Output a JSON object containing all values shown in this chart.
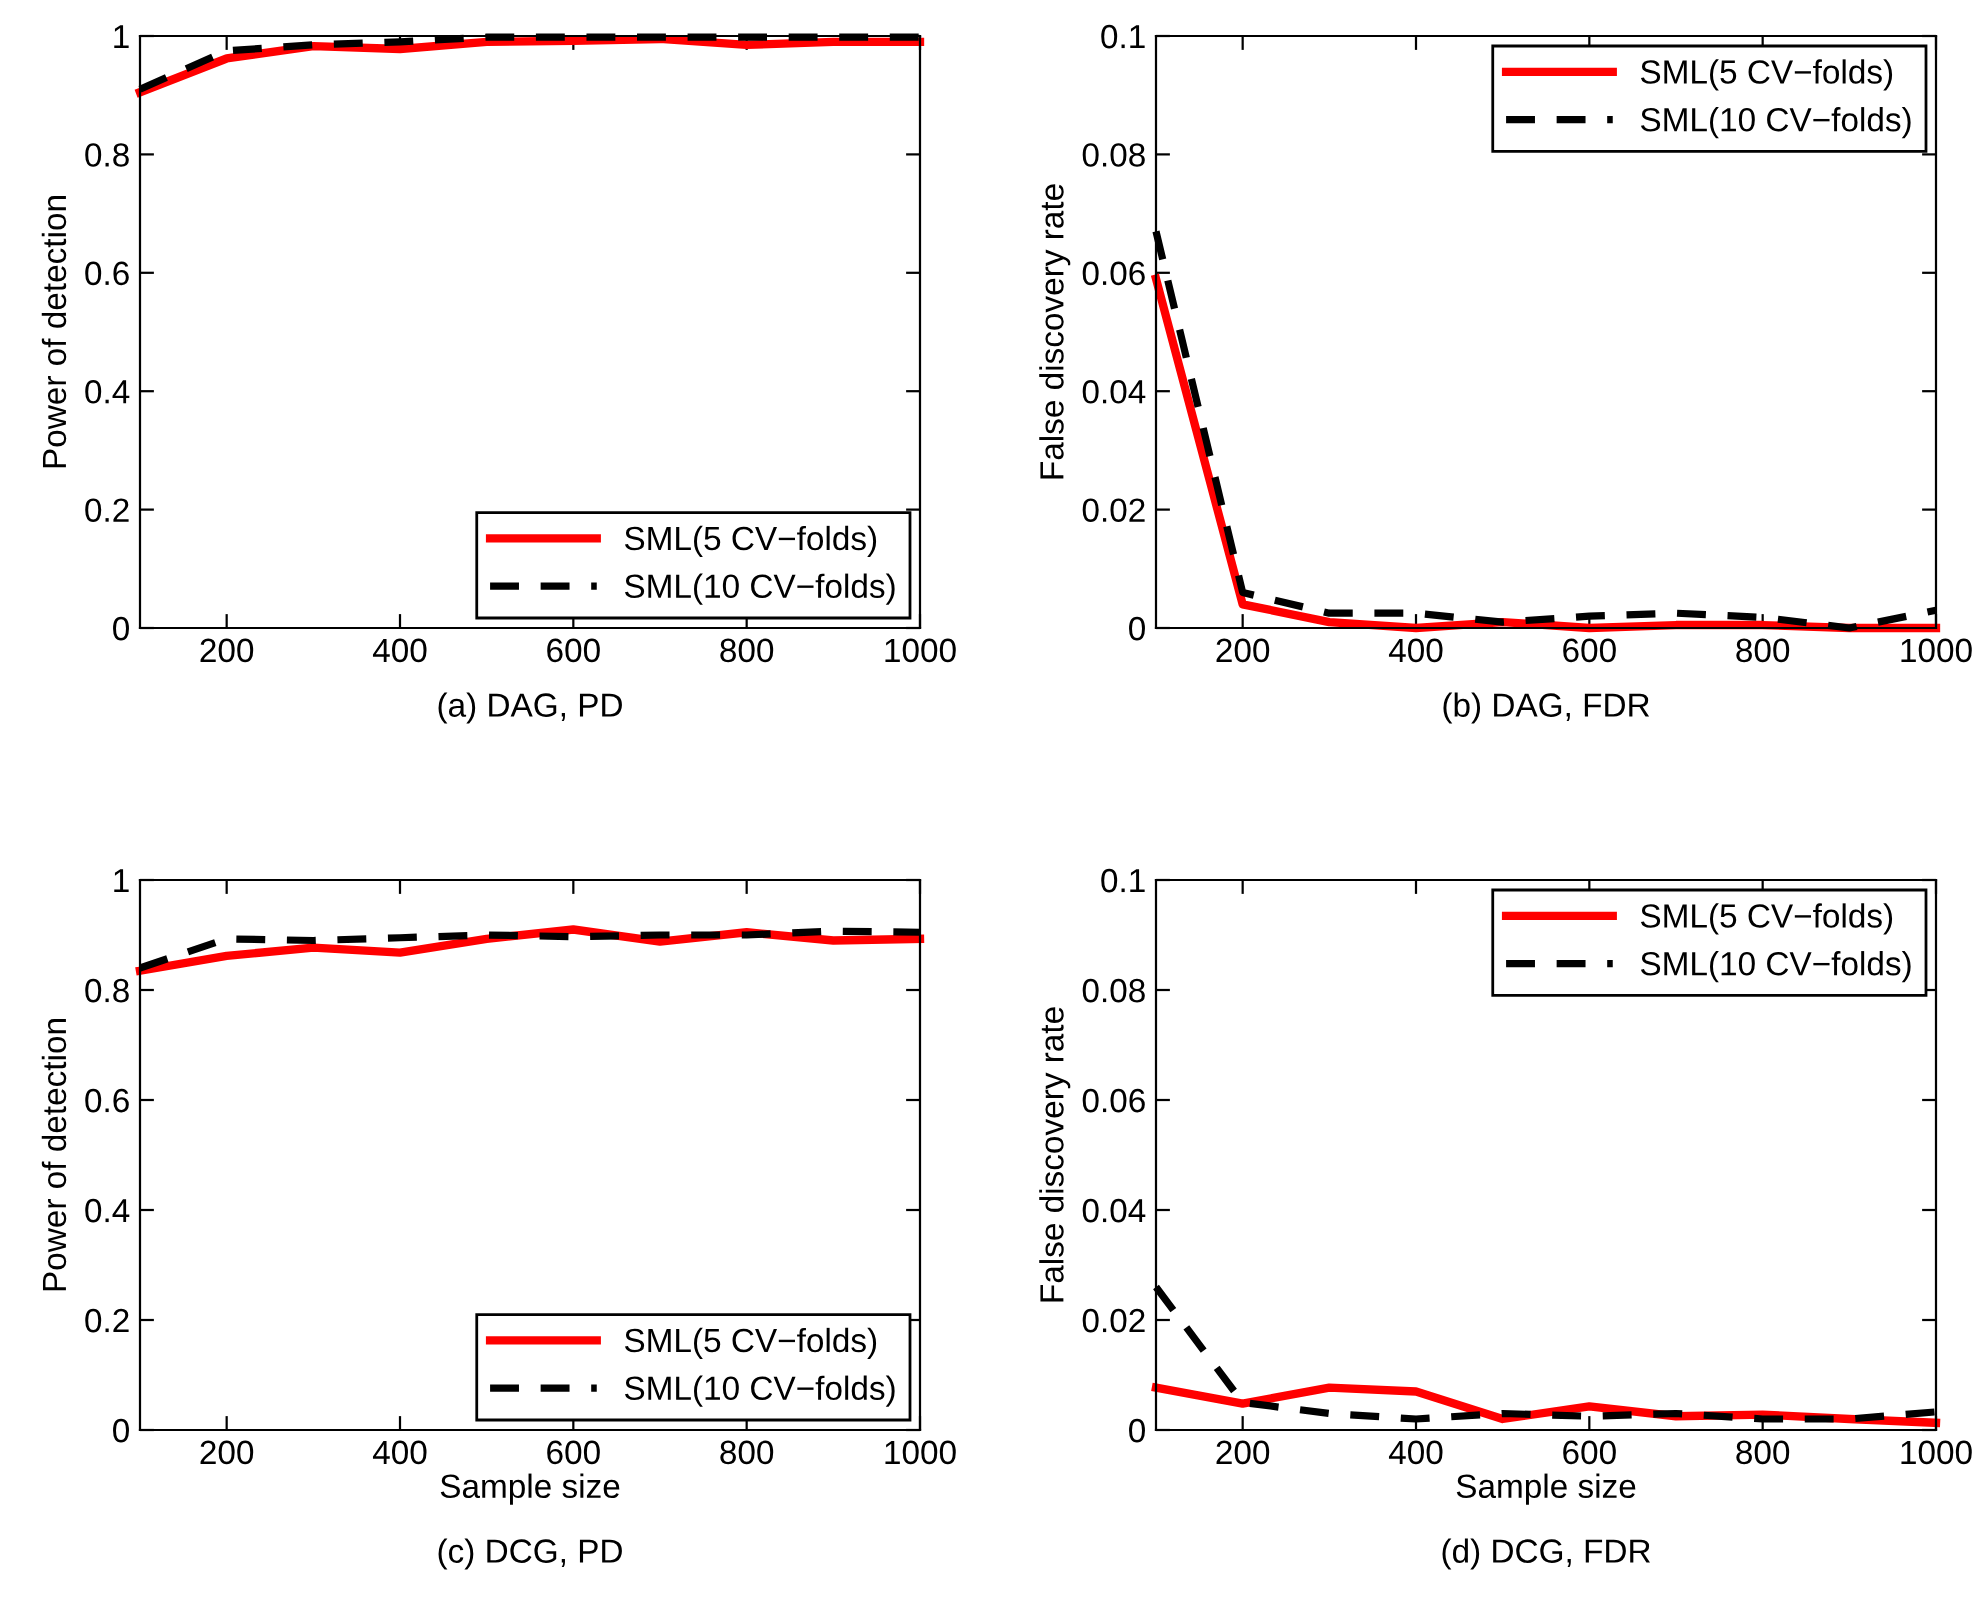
{
  "chart_data": [
    {
      "type": "line",
      "ylabel": "Power of detection",
      "annotations": [
        "(a) DAG, PD"
      ],
      "x": [
        100,
        200,
        300,
        400,
        500,
        600,
        700,
        800,
        900,
        1000
      ],
      "xlim": [
        100,
        1000
      ],
      "xticks": [
        200,
        400,
        600,
        800,
        1000
      ],
      "ylim": [
        0,
        1
      ],
      "yticks": [
        0,
        0.2,
        0.4,
        0.6,
        0.8,
        1
      ],
      "grid": false,
      "legend": "bottom right",
      "series": [
        {
          "name": "SML(5 CV−folds)",
          "color": "#ff0000",
          "line_style": "solid",
          "values": [
            0.905,
            0.962,
            0.983,
            0.978,
            0.99,
            0.992,
            0.995,
            0.985,
            0.99,
            0.99
          ]
        },
        {
          "name": "SML(10 CV−folds)",
          "color": "#000000",
          "line_style": "dashed",
          "values": [
            0.91,
            0.975,
            0.985,
            0.99,
            0.998,
            0.998,
            0.998,
            0.998,
            0.998,
            0.998
          ]
        }
      ]
    },
    {
      "type": "line",
      "ylabel": "False discovery rate",
      "annotations": [
        "(b) DAG, FDR"
      ],
      "x": [
        100,
        200,
        300,
        400,
        500,
        600,
        700,
        800,
        900,
        1000
      ],
      "xlim": [
        100,
        1000
      ],
      "xticks": [
        200,
        400,
        600,
        800,
        1000
      ],
      "ylim": [
        0,
        0.1
      ],
      "yticks": [
        0,
        0.02,
        0.04,
        0.06,
        0.08,
        0.1
      ],
      "grid": false,
      "legend": "top right",
      "series": [
        {
          "name": "SML(5 CV−folds)",
          "color": "#ff0000",
          "line_style": "solid",
          "values": [
            0.059,
            0.004,
            0.001,
            0.0,
            0.001,
            0.0,
            0.0005,
            0.0005,
            0.0,
            0.0
          ]
        },
        {
          "name": "SML(10 CV−folds)",
          "color": "#000000",
          "line_style": "dashed",
          "values": [
            0.067,
            0.006,
            0.0025,
            0.0025,
            0.001,
            0.002,
            0.0025,
            0.0018,
            0.0,
            0.003
          ]
        }
      ]
    },
    {
      "type": "line",
      "xlabel": "Sample size",
      "ylabel": "Power of detection",
      "annotations": [
        "(c) DCG, PD"
      ],
      "x": [
        100,
        200,
        300,
        400,
        500,
        600,
        700,
        800,
        900,
        1000
      ],
      "xlim": [
        100,
        1000
      ],
      "xticks": [
        200,
        400,
        600,
        800,
        1000
      ],
      "ylim": [
        0,
        1
      ],
      "yticks": [
        0,
        0.2,
        0.4,
        0.6,
        0.8,
        1
      ],
      "grid": false,
      "legend": "bottom right",
      "series": [
        {
          "name": "SML(5 CV−folds)",
          "color": "#ff0000",
          "line_style": "solid",
          "values": [
            0.835,
            0.862,
            0.877,
            0.868,
            0.893,
            0.91,
            0.888,
            0.905,
            0.89,
            0.893
          ]
        },
        {
          "name": "SML(10 CV−folds)",
          "color": "#000000",
          "line_style": "dashed",
          "values": [
            0.84,
            0.893,
            0.89,
            0.895,
            0.9,
            0.897,
            0.9,
            0.9,
            0.907,
            0.905
          ]
        }
      ]
    },
    {
      "type": "line",
      "xlabel": "Sample size",
      "ylabel": "False discovery rate",
      "annotations": [
        "(d) DCG, FDR"
      ],
      "x": [
        100,
        200,
        300,
        400,
        500,
        600,
        700,
        800,
        900,
        1000
      ],
      "xlim": [
        100,
        1000
      ],
      "xticks": [
        200,
        400,
        600,
        800,
        1000
      ],
      "ylim": [
        0,
        0.1
      ],
      "yticks": [
        0,
        0.02,
        0.04,
        0.06,
        0.08,
        0.1
      ],
      "grid": false,
      "legend": "top right",
      "series": [
        {
          "name": "SML(5 CV−folds)",
          "color": "#ff0000",
          "line_style": "solid",
          "values": [
            0.0077,
            0.0048,
            0.0077,
            0.007,
            0.002,
            0.0043,
            0.0025,
            0.0028,
            0.002,
            0.0013
          ]
        },
        {
          "name": "SML(10 CV−folds)",
          "color": "#000000",
          "line_style": "dashed",
          "values": [
            0.026,
            0.005,
            0.003,
            0.002,
            0.003,
            0.0025,
            0.003,
            0.002,
            0.002,
            0.0033
          ]
        }
      ]
    }
  ]
}
